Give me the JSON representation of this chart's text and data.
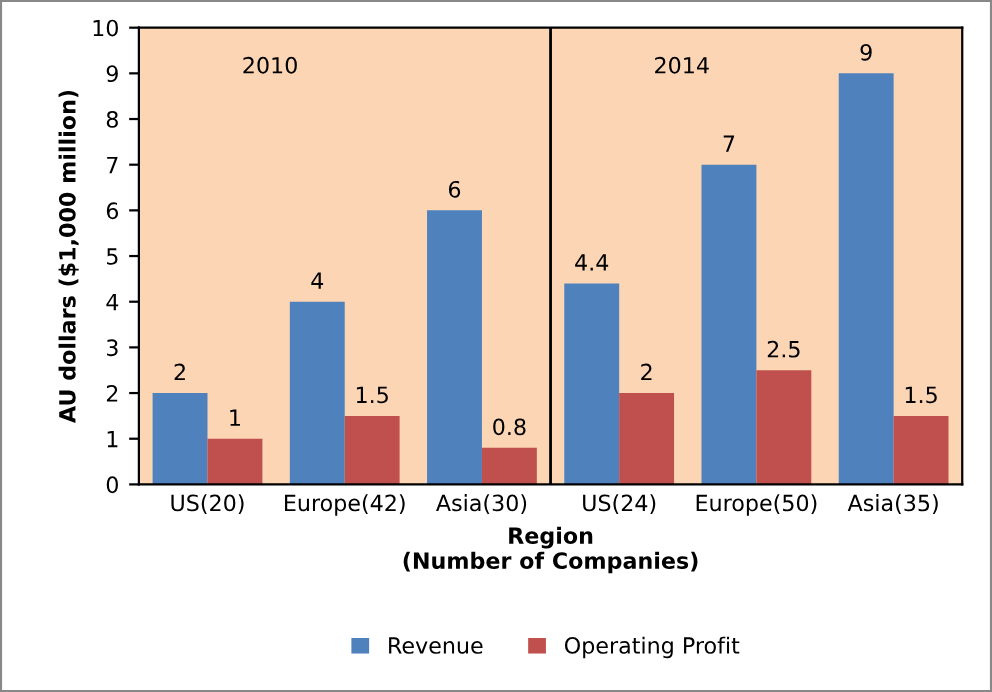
{
  "chart_data": {
    "type": "bar",
    "xlabel": "Region\n(Number of Companies)",
    "ylabel": "AU dollars ($1,000 million)",
    "categories": [
      "US(20)",
      "Europe(42)",
      "Asia(30)",
      "US(24)",
      "Europe(50)",
      "Asia(35)"
    ],
    "series": [
      {
        "name": "Revenue",
        "color": "#4f81bd",
        "values": [
          2,
          4,
          6,
          4.4,
          7,
          9
        ]
      },
      {
        "name": "Operating Profit",
        "color": "#c0504d",
        "values": [
          1,
          1.5,
          0.8,
          2,
          2.5,
          1.5
        ]
      }
    ],
    "ylim": [
      0,
      10
    ],
    "yticks": [
      0,
      1,
      2,
      3,
      4,
      5,
      6,
      7,
      8,
      9,
      10
    ],
    "annotations": [
      "2010",
      "2014"
    ],
    "data_labels": true,
    "legend": "bottom",
    "grid": false
  }
}
